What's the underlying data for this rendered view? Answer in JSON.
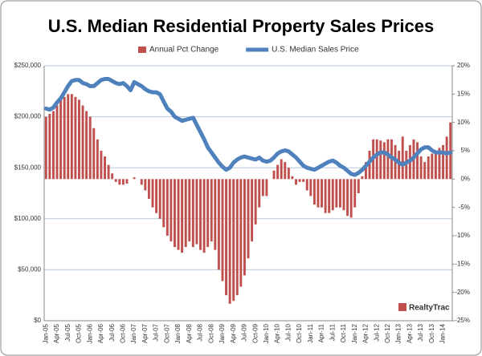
{
  "chart_data": {
    "type": "bar_line",
    "title": "U.S. Median Residential Property Sales Prices",
    "logo": "RealtyTrac",
    "categories": [
      "Jan-05",
      null,
      null,
      "Apr-05",
      null,
      null,
      "Jul-05",
      null,
      null,
      "Oct-05",
      null,
      null,
      "Jan-06",
      null,
      null,
      "Apr-06",
      null,
      null,
      "Jul-06",
      null,
      null,
      "Oct-06",
      null,
      null,
      "Jan-07",
      null,
      null,
      "Apr-07",
      null,
      null,
      "Jul-07",
      null,
      null,
      "Oct-07",
      null,
      null,
      "Jan-08",
      null,
      null,
      "Apr-08",
      null,
      null,
      "Jul-08",
      null,
      null,
      "Oct-08",
      null,
      null,
      "Jan-09",
      null,
      null,
      "Apr-09",
      null,
      null,
      "Jul-09",
      null,
      null,
      "Oct-09",
      null,
      null,
      "Jan-10",
      null,
      null,
      "Apr-10",
      null,
      null,
      "Jul-10",
      null,
      null,
      "Oct-10",
      null,
      null,
      "Jan-11",
      null,
      null,
      "Apr-11",
      null,
      null,
      "Jul-11",
      null,
      null,
      "Oct-11",
      null,
      null,
      "Jan-12",
      null,
      null,
      "Apr-12",
      null,
      null,
      "Jul-12",
      null,
      null,
      "Oct-12",
      null,
      null,
      "Jan-13",
      null,
      null,
      "Apr-13",
      null,
      null,
      "Jul-13",
      null,
      null,
      "Oct-13",
      null,
      null,
      "Jan-14",
      null,
      null
    ],
    "series": [
      {
        "name": "Annual Pct Change",
        "color": "#c0504d",
        "axis": "y2",
        "kind": "bar",
        "values": [
          11,
          11.5,
          12,
          13,
          14,
          14.5,
          15,
          15,
          14.5,
          14,
          13,
          12,
          11,
          9,
          7,
          5,
          4,
          2.5,
          1,
          -0.5,
          -1,
          -1,
          -0.8,
          0,
          0.3,
          0,
          -1,
          -2,
          -3.5,
          -5,
          -6,
          -7,
          -8.5,
          -10,
          -11,
          -12,
          -12.5,
          -13,
          -12,
          -11,
          -12,
          -11.5,
          -12.5,
          -13,
          -12,
          -11,
          -12.5,
          -16,
          -18,
          -20.5,
          -22,
          -21.5,
          -20.5,
          -19,
          -17,
          -14,
          -11,
          -8,
          -5,
          -3,
          -3,
          0,
          1.5,
          2.5,
          3.5,
          3,
          2,
          0.5,
          -1,
          -0.5,
          -0.5,
          -2,
          -3,
          -4.5,
          -5,
          -5,
          -6,
          -6,
          -5.5,
          -5,
          -5,
          -5.5,
          -6.5,
          -6.8,
          -5,
          -2.5,
          0.5,
          3,
          5,
          7,
          7,
          6.8,
          6.5,
          7,
          7,
          6,
          5,
          7.5,
          5,
          6,
          7,
          6.5,
          4,
          3,
          4,
          4.5,
          5,
          5.5,
          6,
          7.5,
          10
        ]
      },
      {
        "name": "U.S. Median Sales Price",
        "color": "#4f81bd",
        "axis": "y",
        "kind": "line",
        "values": [
          208000,
          207000,
          209000,
          214000,
          218000,
          224000,
          230000,
          235000,
          236000,
          236000,
          233000,
          232000,
          230000,
          230000,
          233000,
          236000,
          237000,
          237000,
          235000,
          233000,
          232000,
          233000,
          230000,
          226000,
          234000,
          232000,
          230000,
          227000,
          225000,
          224000,
          224000,
          222000,
          215000,
          208000,
          205000,
          200000,
          198000,
          196000,
          197000,
          198000,
          199000,
          192000,
          185000,
          178000,
          170000,
          165000,
          160000,
          155000,
          151000,
          148000,
          150000,
          155000,
          158000,
          160000,
          161000,
          160000,
          159000,
          158000,
          160000,
          157000,
          156000,
          157000,
          160000,
          164000,
          166000,
          167000,
          166000,
          163000,
          160000,
          156000,
          152000,
          150000,
          149000,
          148000,
          150000,
          152000,
          154000,
          156000,
          157000,
          155000,
          152000,
          150000,
          147000,
          144000,
          143000,
          145000,
          148000,
          152000,
          156000,
          160000,
          163000,
          165000,
          165000,
          163000,
          160000,
          158000,
          155000,
          153000,
          155000,
          157000,
          160000,
          164000,
          168000,
          170000,
          170000,
          167000,
          165000,
          165000,
          165000,
          164000,
          165000
        ]
      }
    ],
    "ylim": [
      0,
      250000
    ],
    "yticks": [
      {
        "value": 0,
        "label": "$0"
      },
      {
        "value": 50000,
        "label": "$50,000"
      },
      {
        "value": 100000,
        "label": "$100,000"
      },
      {
        "value": 150000,
        "label": "$150,000"
      },
      {
        "value": 200000,
        "label": "$200,000"
      },
      {
        "value": 250000,
        "label": "$250,000"
      }
    ],
    "y2lim": [
      -25,
      20
    ],
    "y2ticks": [
      {
        "value": -25,
        "label": "-25%"
      },
      {
        "value": -20,
        "label": "-20%"
      },
      {
        "value": -15,
        "label": "-15%"
      },
      {
        "value": -10,
        "label": "-10%"
      },
      {
        "value": -5,
        "label": "-5%"
      },
      {
        "value": 0,
        "label": "0%"
      },
      {
        "value": 5,
        "label": "5%"
      },
      {
        "value": 10,
        "label": "10%"
      },
      {
        "value": 15,
        "label": "15%"
      },
      {
        "value": 20,
        "label": "20%"
      }
    ],
    "grid": true
  }
}
